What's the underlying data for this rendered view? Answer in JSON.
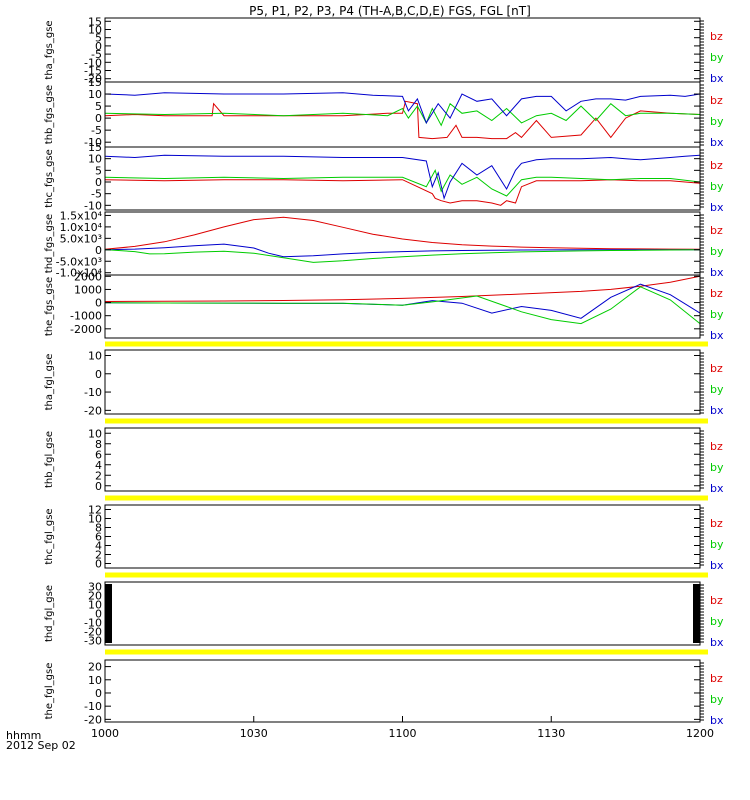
{
  "title": "P5, P1, P2, P3, P4 (TH-A,B,C,D,E) FGS, FGL [nT]",
  "time_axis": {
    "ticks": [
      "1000",
      "1030",
      "1100",
      "1130",
      "1200"
    ],
    "format_label": "hhmm",
    "date_label": "2012 Sep 02"
  },
  "colors": {
    "bx": "#0000cc",
    "by": "#00cc00",
    "bz": "#dd0000",
    "flag": "#ffff00",
    "axis": "#000000"
  },
  "legend": [
    "bz",
    "by",
    "bx"
  ],
  "chart_data": [
    {
      "type": "line",
      "ylabel": "tha_fgs_gse",
      "ylim": [
        -22,
        17
      ],
      "yticks": [
        "15",
        "10",
        "5",
        "0",
        "-5",
        "-10",
        "-15",
        "-20"
      ],
      "tick_values": [
        15,
        10,
        5,
        0,
        -5,
        -10,
        -15,
        -20
      ],
      "series": [
        {
          "name": "bz",
          "x": [],
          "values": []
        },
        {
          "name": "by",
          "x": [],
          "values": []
        },
        {
          "name": "bx",
          "x": [],
          "values": []
        }
      ]
    },
    {
      "type": "line",
      "ylabel": "thb_fgs_gse",
      "ylim": [
        -12,
        15
      ],
      "yticks": [
        "15",
        "10",
        "5",
        "0",
        "-5",
        "-10"
      ],
      "tick_values": [
        15,
        10,
        5,
        0,
        -5,
        -10
      ],
      "series": [
        {
          "name": "bz",
          "x": [
            0,
            10,
            20,
            36,
            36.5,
            40,
            60,
            80,
            95,
            100,
            101,
            105,
            105.5,
            110,
            115,
            118,
            120,
            125,
            130,
            135,
            138,
            140,
            145,
            150,
            160,
            165,
            170,
            175,
            180,
            190,
            200
          ],
          "values": [
            1,
            1.5,
            1,
            1,
            6,
            1,
            1,
            1,
            2,
            2,
            7,
            6,
            -8,
            -8.5,
            -8,
            -3,
            -8,
            -8,
            -8.5,
            -8.5,
            -6,
            -8,
            -1,
            -8,
            -7,
            0,
            -8,
            0,
            3,
            2,
            1.5
          ]
        },
        {
          "name": "by",
          "x": [
            0,
            20,
            40,
            60,
            80,
            95,
            100,
            102,
            105,
            108,
            110,
            113,
            116,
            120,
            125,
            130,
            135,
            140,
            145,
            150,
            155,
            160,
            165,
            170,
            175,
            180,
            190,
            200
          ],
          "values": [
            2,
            1.5,
            2,
            1,
            2,
            1,
            4,
            0,
            5,
            -2,
            4,
            -3,
            6,
            2,
            3,
            -1,
            4,
            -2,
            1,
            2,
            -1,
            5,
            -1,
            6,
            1,
            2,
            2,
            1.5
          ]
        },
        {
          "name": "bx",
          "x": [
            0,
            10,
            20,
            40,
            60,
            80,
            90,
            100,
            102,
            105,
            108,
            112,
            116,
            120,
            125,
            130,
            135,
            140,
            145,
            150,
            155,
            160,
            165,
            170,
            175,
            180,
            190,
            195,
            200
          ],
          "values": [
            10,
            9.5,
            10.5,
            10,
            10,
            10.5,
            9.5,
            9,
            3,
            8,
            -2,
            6,
            0,
            10,
            7,
            8,
            1,
            8,
            9,
            9,
            3,
            7,
            8,
            8,
            7.5,
            9,
            9.5,
            9,
            10
          ]
        }
      ]
    },
    {
      "type": "line",
      "ylabel": "thc_fgs_gse",
      "ylim": [
        -12,
        15
      ],
      "yticks": [
        "15",
        "10",
        "5",
        "0",
        "-5",
        "-10"
      ],
      "tick_values": [
        15,
        10,
        5,
        0,
        -5,
        -10
      ],
      "series": [
        {
          "name": "bz",
          "x": [
            0,
            20,
            40,
            60,
            80,
            100,
            110,
            111,
            113,
            116,
            120,
            125,
            130,
            133,
            135,
            138,
            140,
            145,
            150,
            160,
            170,
            180,
            190,
            200
          ],
          "values": [
            1,
            0.5,
            1,
            1,
            0.5,
            1,
            -5,
            -7,
            -8,
            -9,
            -8,
            -8,
            -9,
            -10,
            -8,
            -9,
            -2,
            0.5,
            0.5,
            0.5,
            1,
            0.5,
            0.5,
            -0.5
          ]
        },
        {
          "name": "by",
          "x": [
            0,
            20,
            40,
            60,
            80,
            100,
            108,
            111,
            113,
            116,
            120,
            125,
            130,
            135,
            140,
            145,
            150,
            160,
            170,
            180,
            190,
            200
          ],
          "values": [
            2,
            1.5,
            2,
            1.5,
            2,
            2,
            -2,
            5,
            -4,
            3,
            -1,
            2,
            -3,
            -6,
            1,
            2,
            2,
            1.5,
            1,
            1.5,
            1.5,
            0
          ]
        },
        {
          "name": "bx",
          "x": [
            0,
            10,
            20,
            40,
            60,
            80,
            100,
            108,
            110,
            112,
            114,
            116,
            120,
            125,
            130,
            135,
            138,
            140,
            145,
            150,
            160,
            170,
            175,
            180,
            190,
            195,
            200
          ],
          "values": [
            11,
            10.5,
            11.5,
            11,
            11,
            10.5,
            10.5,
            9,
            -2,
            4,
            -7,
            0,
            8,
            3,
            7,
            -3,
            5,
            8,
            9.5,
            10,
            10,
            10.5,
            10,
            9.5,
            10.5,
            11,
            11.5
          ]
        }
      ]
    },
    {
      "type": "line",
      "ylabel": "thd_fgs_gse",
      "ylim": [
        -11000,
        16500
      ],
      "yticks": [
        "1.5x10⁴",
        "1.0x10⁴",
        "5.0x10³",
        "0",
        "-5.0x10³",
        "-1.0x10⁴"
      ],
      "tick_values": [
        15000,
        10000,
        5000,
        0,
        -5000,
        -10000
      ],
      "series": [
        {
          "name": "bz",
          "x": [
            0,
            10,
            20,
            30,
            40,
            50,
            60,
            70,
            80,
            90,
            100,
            110,
            120,
            130,
            140,
            150,
            160,
            170,
            180,
            190,
            200
          ],
          "values": [
            200,
            1500,
            3500,
            6500,
            10000,
            13200,
            14200,
            12800,
            9800,
            6800,
            4700,
            3200,
            2200,
            1600,
            1200,
            900,
            700,
            500,
            400,
            300,
            250
          ]
        },
        {
          "name": "bx",
          "x": [
            0,
            10,
            20,
            30,
            40,
            50,
            55,
            60,
            70,
            80,
            90,
            100,
            110,
            120,
            130,
            140,
            150,
            160,
            170,
            180,
            190,
            200
          ],
          "values": [
            0,
            300,
            900,
            1800,
            2500,
            800,
            -1500,
            -3000,
            -2600,
            -1800,
            -1200,
            -800,
            -500,
            -300,
            -200,
            -100,
            -50,
            0,
            0,
            0,
            0,
            0
          ]
        },
        {
          "name": "by",
          "x": [
            0,
            10,
            15,
            20,
            30,
            40,
            50,
            60,
            70,
            80,
            90,
            100,
            110,
            120,
            130,
            140,
            150,
            160,
            170,
            180,
            190,
            200
          ],
          "values": [
            100,
            -800,
            -1800,
            -1700,
            -1000,
            -600,
            -1500,
            -3500,
            -5500,
            -4800,
            -3800,
            -3000,
            -2300,
            -1700,
            -1300,
            -900,
            -700,
            -500,
            -300,
            -200,
            -100,
            0
          ]
        }
      ]
    },
    {
      "type": "line",
      "ylabel": "the_fgs_gse",
      "ylim": [
        -2700,
        2100
      ],
      "yticks": [
        "2000",
        "1000",
        "0",
        "-1000",
        "-2000"
      ],
      "tick_values": [
        2000,
        1000,
        0,
        -1000,
        -2000
      ],
      "series": [
        {
          "name": "bz",
          "x": [
            0,
            20,
            40,
            60,
            80,
            100,
            120,
            140,
            160,
            170,
            180,
            190,
            200
          ],
          "values": [
            80,
            100,
            120,
            160,
            220,
            320,
            460,
            650,
            850,
            1000,
            1250,
            1550,
            2000
          ]
        },
        {
          "name": "bx",
          "x": [
            0,
            20,
            40,
            60,
            80,
            100,
            110,
            120,
            130,
            140,
            150,
            160,
            170,
            180,
            190,
            200
          ],
          "values": [
            -20,
            -30,
            -40,
            -60,
            -60,
            -200,
            150,
            -50,
            -800,
            -300,
            -600,
            -1200,
            400,
            1400,
            600,
            -800
          ]
        },
        {
          "name": "by",
          "x": [
            0,
            20,
            40,
            60,
            80,
            100,
            110,
            125,
            135,
            140,
            150,
            160,
            170,
            180,
            190,
            200
          ],
          "values": [
            -20,
            -30,
            -40,
            -50,
            -50,
            -200,
            50,
            500,
            -300,
            -700,
            -1300,
            -1600,
            -500,
            1200,
            200,
            -1600
          ]
        }
      ]
    },
    {
      "type": "line",
      "ylabel": "tha_fgl_gse",
      "ylim": [
        -22,
        13
      ],
      "yticks": [
        "10",
        "0",
        "-10",
        "-20"
      ],
      "tick_values": [
        10,
        0,
        -10,
        -20
      ],
      "series": [
        {
          "name": "bz",
          "x": [],
          "values": []
        },
        {
          "name": "by",
          "x": [],
          "values": []
        },
        {
          "name": "bx",
          "x": [],
          "values": []
        }
      ]
    },
    {
      "type": "line",
      "ylabel": "thb_fgl_gse",
      "ylim": [
        -1,
        11
      ],
      "yticks": [
        "10",
        "8",
        "6",
        "4",
        "2",
        "0"
      ],
      "tick_values": [
        10,
        8,
        6,
        4,
        2,
        0
      ],
      "series": [
        {
          "name": "bz",
          "x": [],
          "values": []
        },
        {
          "name": "by",
          "x": [],
          "values": []
        },
        {
          "name": "bx",
          "x": [],
          "values": []
        }
      ]
    },
    {
      "type": "line",
      "ylabel": "thc_fgl_gse",
      "ylim": [
        -1,
        13
      ],
      "yticks": [
        "12",
        "10",
        "8",
        "6",
        "4",
        "2",
        "0"
      ],
      "tick_values": [
        12,
        10,
        8,
        6,
        4,
        2,
        0
      ],
      "series": [
        {
          "name": "bz",
          "x": [],
          "values": []
        },
        {
          "name": "by",
          "x": [],
          "values": []
        },
        {
          "name": "bx",
          "x": [],
          "values": []
        }
      ]
    },
    {
      "type": "line",
      "ylabel": "thd_fgl_gse",
      "ylim": [
        -35,
        35
      ],
      "yticks": [
        "30",
        "20",
        "10",
        "0",
        "-10",
        "-20",
        "-30"
      ],
      "tick_values": [
        30,
        20,
        10,
        0,
        -10,
        -20,
        -30
      ],
      "series": [
        {
          "name": "bz",
          "x": [],
          "values": []
        },
        {
          "name": "by",
          "x": [],
          "values": []
        },
        {
          "name": "bx",
          "x": [],
          "values": []
        }
      ]
    },
    {
      "type": "line",
      "ylabel": "the_fgl_gse",
      "ylim": [
        -22,
        25
      ],
      "yticks": [
        "20",
        "10",
        "0",
        "-10",
        "-20"
      ],
      "tick_values": [
        20,
        10,
        0,
        -10,
        -20
      ],
      "series": [
        {
          "name": "bz",
          "x": [],
          "values": []
        },
        {
          "name": "by",
          "x": [],
          "values": []
        },
        {
          "name": "bx",
          "x": [],
          "values": []
        }
      ]
    }
  ]
}
